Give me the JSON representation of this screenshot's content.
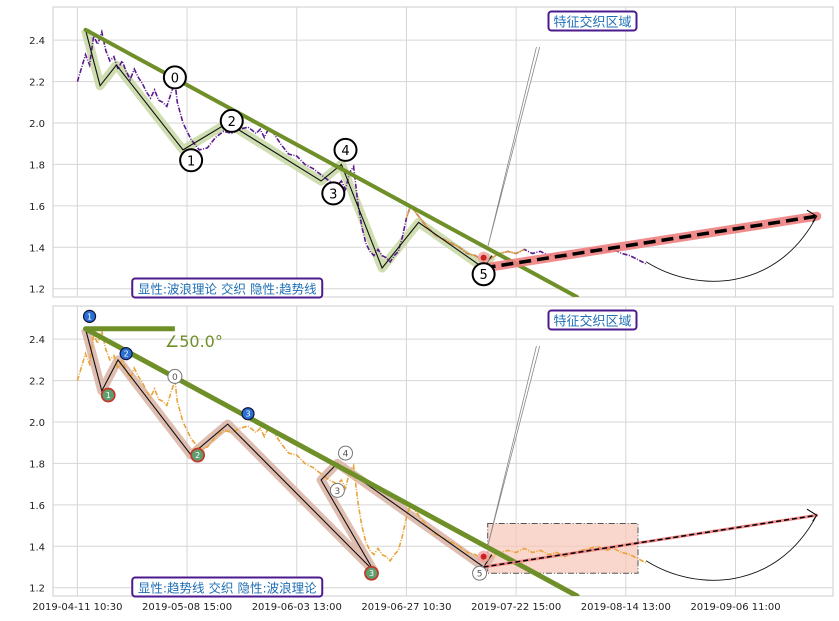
{
  "chart_data": [
    {
      "type": "line",
      "panel": "top",
      "ylim": [
        1.16,
        2.56
      ],
      "yticks": [
        1.2,
        1.4,
        1.6,
        1.8,
        2.0,
        2.2,
        2.4
      ],
      "ytick_labels": [
        "1.2",
        "1.4",
        "1.6",
        "1.8",
        "2.0",
        "2.2",
        "2.4"
      ],
      "grid": true,
      "price_color": "#5b1a8f",
      "overlay_color": "#e8a33a",
      "price_series": [
        [
          0.0,
          2.2
        ],
        [
          1.0,
          2.33
        ],
        [
          1.5,
          2.28
        ],
        [
          2.0,
          2.42
        ],
        [
          2.5,
          2.38
        ],
        [
          3.0,
          2.44
        ],
        [
          3.5,
          2.35
        ],
        [
          4.0,
          2.3
        ],
        [
          4.5,
          2.32
        ],
        [
          5.0,
          2.26
        ],
        [
          5.5,
          2.3
        ],
        [
          6.0,
          2.25
        ],
        [
          6.5,
          2.21
        ],
        [
          7.0,
          2.26
        ],
        [
          7.5,
          2.22
        ],
        [
          8.0,
          2.19
        ],
        [
          8.5,
          2.15
        ],
        [
          9.0,
          2.12
        ],
        [
          9.5,
          2.16
        ],
        [
          10.0,
          2.11
        ],
        [
          10.5,
          2.1
        ],
        [
          11.0,
          2.08
        ],
        [
          12.0,
          2.2
        ],
        [
          12.3,
          2.1
        ],
        [
          13.0,
          2.0
        ],
        [
          14.0,
          1.92
        ],
        [
          15.0,
          1.87
        ],
        [
          16.0,
          1.88
        ],
        [
          17.0,
          1.93
        ],
        [
          18.0,
          1.96
        ],
        [
          19.0,
          1.95
        ],
        [
          20.0,
          1.97
        ],
        [
          21.0,
          1.98
        ],
        [
          22.0,
          1.95
        ],
        [
          22.5,
          1.97
        ],
        [
          23.0,
          1.93
        ],
        [
          23.5,
          1.97
        ],
        [
          24.0,
          1.96
        ],
        [
          24.5,
          1.93
        ],
        [
          25.0,
          1.9
        ],
        [
          26.0,
          1.85
        ],
        [
          27.0,
          1.84
        ],
        [
          28.0,
          1.8
        ],
        [
          29.0,
          1.78
        ],
        [
          30.0,
          1.75
        ],
        [
          31.0,
          1.72
        ],
        [
          32.0,
          1.7
        ],
        [
          32.5,
          1.72
        ],
        [
          33.0,
          1.68
        ],
        [
          33.5,
          1.76
        ],
        [
          34.0,
          1.79
        ],
        [
          34.5,
          1.62
        ],
        [
          35.0,
          1.5
        ],
        [
          35.5,
          1.42
        ],
        [
          36.0,
          1.38
        ],
        [
          36.5,
          1.36
        ],
        [
          37.0,
          1.39
        ],
        [
          37.5,
          1.36
        ],
        [
          38.0,
          1.35
        ],
        [
          38.5,
          1.33
        ],
        [
          39.0,
          1.36
        ],
        [
          39.5,
          1.38
        ],
        [
          40.0,
          1.45
        ],
        [
          40.5,
          1.54
        ],
        [
          41.0,
          1.6
        ],
        [
          42.0,
          1.55
        ],
        [
          43.0,
          1.5
        ],
        [
          44.0,
          1.46
        ],
        [
          45.0,
          1.44
        ],
        [
          46.0,
          1.42
        ],
        [
          47.0,
          1.4
        ],
        [
          48.0,
          1.37
        ],
        [
          49.0,
          1.36
        ],
        [
          50.0,
          1.33
        ],
        [
          51.0,
          1.35
        ],
        [
          52.0,
          1.37
        ],
        [
          53.0,
          1.38
        ],
        [
          54.0,
          1.37
        ],
        [
          55.0,
          1.39
        ],
        [
          56.0,
          1.37
        ],
        [
          57.0,
          1.38
        ],
        [
          58.0,
          1.36
        ],
        [
          59.0,
          1.37
        ],
        [
          60.0,
          1.35
        ],
        [
          61.0,
          1.37
        ],
        [
          62.0,
          1.38
        ],
        [
          63.0,
          1.39
        ],
        [
          64.0,
          1.4
        ],
        [
          65.0,
          1.38
        ],
        [
          66.0,
          1.39
        ],
        [
          67.0,
          1.37
        ],
        [
          68.0,
          1.36
        ],
        [
          69.0,
          1.34
        ],
        [
          70.0,
          1.32
        ]
      ],
      "wave_points": [
        [
          1.0,
          2.45
        ],
        [
          2.8,
          2.18
        ],
        [
          4.8,
          2.28
        ],
        [
          13.0,
          1.87
        ],
        [
          18.5,
          2.0
        ],
        [
          30.0,
          1.72
        ],
        [
          32.5,
          1.8
        ],
        [
          37.5,
          1.3
        ],
        [
          42.0,
          1.52
        ],
        [
          50.0,
          1.3
        ],
        [
          51.0,
          1.36
        ]
      ],
      "wave_markers": [
        {
          "label": "0",
          "x": 12.0,
          "y": 2.22
        },
        {
          "label": "1",
          "x": 14.0,
          "y": 1.82
        },
        {
          "label": "2",
          "x": 19.0,
          "y": 2.01
        },
        {
          "label": "3",
          "x": 31.5,
          "y": 1.66
        },
        {
          "label": "4",
          "x": 33.0,
          "y": 1.87
        },
        {
          "label": "5",
          "x": 50.0,
          "y": 1.27
        }
      ],
      "trendline": {
        "x": [
          1.0,
          61.5
        ],
        "y": [
          2.45,
          1.16
        ],
        "color": "#6f8f28"
      },
      "projection": {
        "x": [
          50.0,
          91.0
        ],
        "y": [
          1.3,
          1.55
        ],
        "color": "#000000",
        "band_color": "#f08080"
      },
      "annotations": [
        {
          "text": "特征交织区域",
          "x": 57.0,
          "y": 2.49
        },
        {
          "text": "显性:波浪理论 交织 隐性:趋势线",
          "x": 7.0,
          "y": 1.18
        }
      ]
    },
    {
      "type": "line",
      "panel": "bottom",
      "ylim": [
        1.16,
        2.56
      ],
      "yticks": [
        1.2,
        1.4,
        1.6,
        1.8,
        2.0,
        2.2,
        2.4
      ],
      "ytick_labels": [
        "1.2",
        "1.4",
        "1.6",
        "1.8",
        "2.0",
        "2.2",
        "2.4"
      ],
      "grid": true,
      "price_color": "#e8a33a",
      "x_tick_labels": [
        "2019-04-11 10:30",
        "2019-05-08 15:00",
        "2019-06-03 13:00",
        "2019-06-27 10:30",
        "2019-07-22 15:00",
        "2019-08-14 13:00",
        "2019-09-06 11:00"
      ],
      "x_tick_positions": [
        0.0,
        13.5,
        27.0,
        40.5,
        54.0,
        67.5,
        81.0
      ],
      "price_series": [
        [
          0.0,
          2.2
        ],
        [
          1.0,
          2.33
        ],
        [
          1.5,
          2.28
        ],
        [
          2.0,
          2.42
        ],
        [
          2.5,
          2.38
        ],
        [
          3.0,
          2.44
        ],
        [
          3.5,
          2.35
        ],
        [
          4.0,
          2.3
        ],
        [
          4.5,
          2.32
        ],
        [
          5.0,
          2.26
        ],
        [
          5.5,
          2.3
        ],
        [
          6.0,
          2.25
        ],
        [
          6.5,
          2.21
        ],
        [
          7.0,
          2.26
        ],
        [
          7.5,
          2.22
        ],
        [
          8.0,
          2.19
        ],
        [
          8.5,
          2.15
        ],
        [
          9.0,
          2.12
        ],
        [
          9.5,
          2.16
        ],
        [
          10.0,
          2.11
        ],
        [
          10.5,
          2.1
        ],
        [
          11.0,
          2.08
        ],
        [
          12.0,
          2.2
        ],
        [
          12.3,
          2.1
        ],
        [
          13.0,
          2.0
        ],
        [
          14.0,
          1.92
        ],
        [
          15.0,
          1.87
        ],
        [
          16.0,
          1.88
        ],
        [
          17.0,
          1.93
        ],
        [
          18.0,
          1.96
        ],
        [
          19.0,
          1.95
        ],
        [
          20.0,
          1.97
        ],
        [
          21.0,
          1.98
        ],
        [
          22.0,
          1.95
        ],
        [
          22.5,
          1.97
        ],
        [
          23.0,
          1.93
        ],
        [
          23.5,
          1.97
        ],
        [
          24.0,
          1.96
        ],
        [
          24.5,
          1.93
        ],
        [
          25.0,
          1.9
        ],
        [
          26.0,
          1.85
        ],
        [
          27.0,
          1.84
        ],
        [
          28.0,
          1.8
        ],
        [
          29.0,
          1.78
        ],
        [
          30.0,
          1.75
        ],
        [
          31.0,
          1.72
        ],
        [
          32.0,
          1.7
        ],
        [
          32.5,
          1.72
        ],
        [
          33.0,
          1.68
        ],
        [
          33.5,
          1.76
        ],
        [
          34.0,
          1.79
        ],
        [
          34.5,
          1.62
        ],
        [
          35.0,
          1.5
        ],
        [
          35.5,
          1.42
        ],
        [
          36.0,
          1.38
        ],
        [
          36.5,
          1.36
        ],
        [
          37.0,
          1.39
        ],
        [
          37.5,
          1.36
        ],
        [
          38.0,
          1.35
        ],
        [
          38.5,
          1.33
        ],
        [
          39.0,
          1.36
        ],
        [
          39.5,
          1.38
        ],
        [
          40.0,
          1.45
        ],
        [
          40.5,
          1.54
        ],
        [
          41.0,
          1.6
        ],
        [
          42.0,
          1.55
        ],
        [
          43.0,
          1.5
        ],
        [
          44.0,
          1.46
        ],
        [
          45.0,
          1.44
        ],
        [
          46.0,
          1.42
        ],
        [
          47.0,
          1.4
        ],
        [
          48.0,
          1.37
        ],
        [
          49.0,
          1.36
        ],
        [
          50.0,
          1.33
        ],
        [
          51.0,
          1.35
        ],
        [
          52.0,
          1.37
        ],
        [
          53.0,
          1.38
        ],
        [
          54.0,
          1.37
        ],
        [
          55.0,
          1.39
        ],
        [
          56.0,
          1.37
        ],
        [
          57.0,
          1.38
        ],
        [
          58.0,
          1.36
        ],
        [
          59.0,
          1.37
        ],
        [
          60.0,
          1.35
        ],
        [
          61.0,
          1.37
        ],
        [
          62.0,
          1.38
        ],
        [
          63.0,
          1.39
        ],
        [
          64.0,
          1.4
        ],
        [
          65.0,
          1.38
        ],
        [
          66.0,
          1.39
        ],
        [
          67.0,
          1.37
        ],
        [
          68.0,
          1.36
        ],
        [
          69.0,
          1.34
        ],
        [
          70.0,
          1.32
        ]
      ],
      "wave_points": [
        [
          1.0,
          2.45
        ],
        [
          3.0,
          2.15
        ],
        [
          5.0,
          2.3
        ],
        [
          14.0,
          1.84
        ],
        [
          18.5,
          1.99
        ],
        [
          36.5,
          1.28
        ],
        [
          30.0,
          1.72
        ],
        [
          32.0,
          1.8
        ],
        [
          50.0,
          1.3
        ],
        [
          51.0,
          1.36
        ]
      ],
      "trend_markers": [
        {
          "label": "1",
          "x": 1.5,
          "y": 2.51
        },
        {
          "label": "2",
          "x": 6.0,
          "y": 2.33
        },
        {
          "label": "3",
          "x": 21.0,
          "y": 2.04
        }
      ],
      "trend_lows": [
        {
          "label": "1",
          "x": 3.8,
          "y": 2.13
        },
        {
          "label": "2",
          "x": 14.8,
          "y": 1.84
        },
        {
          "label": "3",
          "x": 36.2,
          "y": 1.27
        }
      ],
      "wave_markers": [
        {
          "label": "0",
          "x": 12.0,
          "y": 2.22
        },
        {
          "label": "4",
          "x": 33.0,
          "y": 1.85
        },
        {
          "label": "3",
          "x": 32.0,
          "y": 1.67
        },
        {
          "label": "5",
          "x": 49.5,
          "y": 1.27
        }
      ],
      "trendline": {
        "x": [
          1.0,
          61.5
        ],
        "y": [
          2.45,
          1.16
        ],
        "color": "#6f8f28"
      },
      "angle_label": "∠50.0°",
      "angle_line": {
        "x": [
          1.0,
          12.0
        ],
        "y": [
          2.45,
          2.45
        ]
      },
      "region_box": {
        "x": [
          50.5,
          69.0
        ],
        "y": [
          1.27,
          1.51
        ],
        "color": "#f8c6b7"
      },
      "projection": {
        "x": [
          50.0,
          91.0
        ],
        "y": [
          1.3,
          1.55
        ],
        "color": "#000000",
        "band_color": "#f08080"
      },
      "annotations": [
        {
          "text": "特征交织区域",
          "x": 57.0,
          "y": 2.49
        },
        {
          "text": "显性:趋势线 交织 隐性:波浪理论",
          "x": 7.0,
          "y": 1.18
        }
      ]
    }
  ]
}
